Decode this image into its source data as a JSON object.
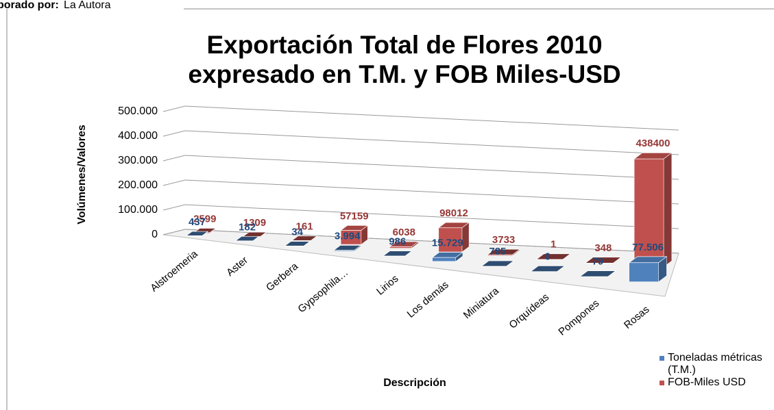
{
  "credit": {
    "label": "borado por:",
    "value": "La Autora"
  },
  "chart_data": {
    "type": "bar",
    "title": [
      "Exportación Total de Flores 2010",
      "expresado en T.M. y FOB Miles-USD"
    ],
    "x_label": "Descripción",
    "y_label": "Volúmenes/Valores",
    "categories": [
      "Alstroemeria",
      "Aster",
      "Gerbera",
      "Gypsophila…",
      "Lirios",
      "Los demás",
      "Miniatura",
      "Orquídeas",
      "Pompones",
      "Rosas"
    ],
    "series": [
      {
        "name": "Toneladas métricas (T.M.)",
        "color": "#4f81bd",
        "label_color": "#1f497d",
        "values": [
          437,
          182,
          34,
          3994,
          986,
          15729,
          785,
          0,
          79,
          77506
        ],
        "value_labels": [
          "437",
          "182",
          "34",
          "3.994",
          "986",
          "15.729",
          "785",
          "0",
          "79",
          "77.506"
        ]
      },
      {
        "name": "FOB-Miles USD",
        "color": "#c0504d",
        "label_color": "#953735",
        "values": [
          2599,
          1309,
          161,
          57159,
          6038,
          98012,
          3733,
          1,
          348,
          438400
        ]
      }
    ],
    "ylim": [
      0,
      500000
    ],
    "yticks": [
      0,
      {
        "value": 100000,
        "label": "100.000"
      },
      {
        "value": 200000,
        "label": "200.000"
      },
      {
        "value": 300000,
        "label": "300.000"
      },
      {
        "value": 400000,
        "label": "400.000"
      },
      {
        "value": 500000,
        "label": "500.000"
      }
    ],
    "grid": true,
    "legend": "bottom-right"
  }
}
